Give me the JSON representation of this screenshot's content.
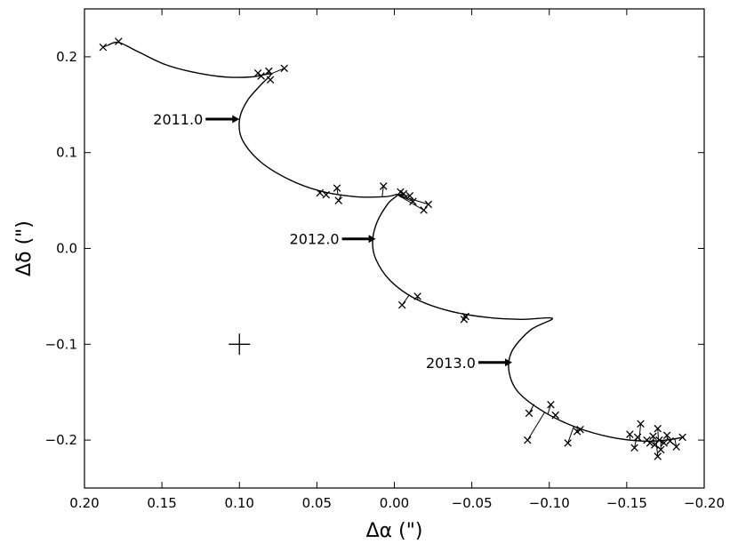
{
  "chart_data": {
    "type": "scatter",
    "title": "",
    "xlabel": "Δα (\")",
    "ylabel": "Δδ (\")",
    "xlim": [
      0.2,
      -0.2
    ],
    "ylim": [
      -0.25,
      0.25
    ],
    "x_inverted": true,
    "xticks": [
      "0.20",
      "0.15",
      "0.10",
      "0.05",
      "0.00",
      "−0.05",
      "−0.10",
      "−0.15",
      "−0.20"
    ],
    "xtick_values": [
      0.2,
      0.15,
      0.1,
      0.05,
      0.0,
      -0.05,
      -0.1,
      -0.15,
      -0.2
    ],
    "yticks": [
      "0.2",
      "0.1",
      "0.0",
      "−0.1",
      "−0.2"
    ],
    "ytick_values": [
      0.2,
      0.1,
      0.0,
      -0.1,
      -0.2
    ],
    "grid": false,
    "star_marker": {
      "x": 0.1,
      "y": -0.1
    },
    "orbit_curve": [
      [
        0.185,
        0.212
      ],
      [
        0.178,
        0.215
      ],
      [
        0.165,
        0.205
      ],
      [
        0.148,
        0.192
      ],
      [
        0.13,
        0.184
      ],
      [
        0.11,
        0.179
      ],
      [
        0.092,
        0.179
      ],
      [
        0.08,
        0.182
      ],
      [
        0.086,
        0.171
      ],
      [
        0.095,
        0.154
      ],
      [
        0.1,
        0.134
      ],
      [
        0.098,
        0.113
      ],
      [
        0.086,
        0.09
      ],
      [
        0.068,
        0.072
      ],
      [
        0.048,
        0.06
      ],
      [
        0.025,
        0.054
      ],
      [
        0.006,
        0.054
      ],
      [
        -0.002,
        0.056
      ],
      [
        0.004,
        0.047
      ],
      [
        0.011,
        0.028
      ],
      [
        0.014,
        0.008
      ],
      [
        0.012,
        -0.011
      ],
      [
        0.003,
        -0.033
      ],
      [
        -0.013,
        -0.052
      ],
      [
        -0.035,
        -0.065
      ],
      [
        -0.06,
        -0.072
      ],
      [
        -0.082,
        -0.074
      ],
      [
        -0.102,
        -0.073
      ],
      [
        -0.088,
        -0.085
      ],
      [
        -0.076,
        -0.107
      ],
      [
        -0.074,
        -0.128
      ],
      [
        -0.08,
        -0.15
      ],
      [
        -0.097,
        -0.171
      ],
      [
        -0.118,
        -0.187
      ],
      [
        -0.14,
        -0.197
      ],
      [
        -0.16,
        -0.201
      ],
      [
        -0.175,
        -0.2
      ],
      [
        -0.187,
        -0.197
      ]
    ],
    "observations": [
      {
        "x": 0.188,
        "y": 0.21
      },
      {
        "x": 0.178,
        "y": 0.216
      },
      {
        "x": 0.088,
        "y": 0.183
      },
      {
        "x": 0.086,
        "y": 0.18
      },
      {
        "x": 0.081,
        "y": 0.185
      },
      {
        "x": 0.08,
        "y": 0.176
      },
      {
        "x": 0.071,
        "y": 0.188
      },
      {
        "x": 0.048,
        "y": 0.058
      },
      {
        "x": 0.044,
        "y": 0.056
      },
      {
        "x": 0.037,
        "y": 0.063
      },
      {
        "x": 0.036,
        "y": 0.05
      },
      {
        "x": 0.007,
        "y": 0.065
      },
      {
        "x": -0.004,
        "y": 0.059
      },
      {
        "x": -0.006,
        "y": 0.057
      },
      {
        "x": -0.01,
        "y": 0.055
      },
      {
        "x": -0.012,
        "y": 0.049
      },
      {
        "x": -0.019,
        "y": 0.04
      },
      {
        "x": -0.022,
        "y": 0.046
      },
      {
        "x": -0.005,
        "y": -0.059
      },
      {
        "x": -0.015,
        "y": -0.05
      },
      {
        "x": -0.045,
        "y": -0.074
      },
      {
        "x": -0.046,
        "y": -0.071
      },
      {
        "x": -0.086,
        "y": -0.2
      },
      {
        "x": -0.087,
        "y": -0.172
      },
      {
        "x": -0.101,
        "y": -0.163
      },
      {
        "x": -0.104,
        "y": -0.174
      },
      {
        "x": -0.112,
        "y": -0.203
      },
      {
        "x": -0.118,
        "y": -0.191
      },
      {
        "x": -0.12,
        "y": -0.189
      },
      {
        "x": -0.152,
        "y": -0.194
      },
      {
        "x": -0.155,
        "y": -0.208
      },
      {
        "x": -0.157,
        "y": -0.197
      },
      {
        "x": -0.159,
        "y": -0.183
      },
      {
        "x": -0.163,
        "y": -0.2
      },
      {
        "x": -0.165,
        "y": -0.203
      },
      {
        "x": -0.167,
        "y": -0.196
      },
      {
        "x": -0.168,
        "y": -0.205
      },
      {
        "x": -0.17,
        "y": -0.188
      },
      {
        "x": -0.171,
        "y": -0.2
      },
      {
        "x": -0.17,
        "y": -0.217
      },
      {
        "x": -0.172,
        "y": -0.21
      },
      {
        "x": -0.174,
        "y": -0.203
      },
      {
        "x": -0.176,
        "y": -0.195
      },
      {
        "x": -0.178,
        "y": -0.201
      },
      {
        "x": -0.182,
        "y": -0.207
      },
      {
        "x": -0.186,
        "y": -0.197
      }
    ],
    "annotations": [
      {
        "text": "2011.0",
        "x": 0.1,
        "y": 0.135
      },
      {
        "text": "2012.0",
        "x": 0.012,
        "y": 0.01
      },
      {
        "text": "2013.0",
        "x": -0.076,
        "y": -0.119
      }
    ]
  }
}
